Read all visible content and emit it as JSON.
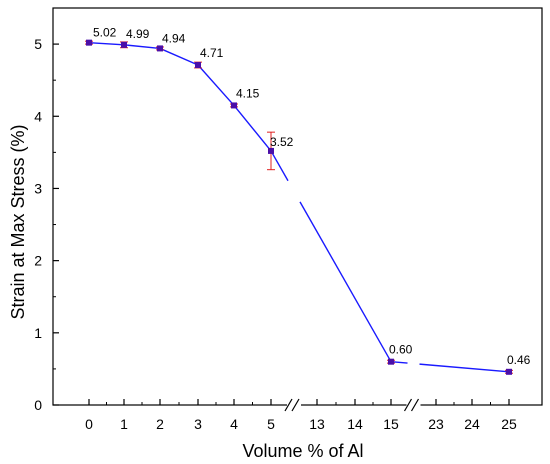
{
  "chart_data": {
    "type": "line",
    "title": "",
    "xlabel": "Volume % of Al",
    "ylabel": "Strain at Max Stress (%)",
    "ylim": [
      0,
      5.5
    ],
    "yticks": [
      0,
      1,
      2,
      3,
      4,
      5
    ],
    "yticklabels": [
      "0",
      "1",
      "2",
      "3",
      "4",
      "5"
    ],
    "xticks": [
      0,
      1,
      2,
      3,
      4,
      5,
      13,
      14,
      15,
      23,
      24,
      25
    ],
    "xticklabels": [
      "0",
      "1",
      "2",
      "3",
      "4",
      "5",
      "13",
      "14",
      "15",
      "23",
      "24",
      "25"
    ],
    "x_axis_breaks": [
      [
        5,
        13
      ],
      [
        15,
        23
      ]
    ],
    "grid": false,
    "legend": "none",
    "series": [
      {
        "x": [
          0,
          1,
          2,
          3,
          4,
          5,
          15,
          25
        ],
        "values": [
          5.02,
          4.99,
          4.94,
          4.71,
          4.15,
          3.52,
          0.6,
          0.46
        ],
        "labels": [
          "5.02",
          "4.99",
          "4.94",
          "4.71",
          "4.15",
          "3.52",
          "0.60",
          "0.46"
        ],
        "error": [
          0.02,
          0.04,
          0.02,
          0.04,
          0.02,
          0.26,
          0.02,
          0.02
        ]
      }
    ],
    "colors": {
      "line": "#1a1aff",
      "marker": "#4b0fa8",
      "error_bar": "#e02020"
    }
  }
}
